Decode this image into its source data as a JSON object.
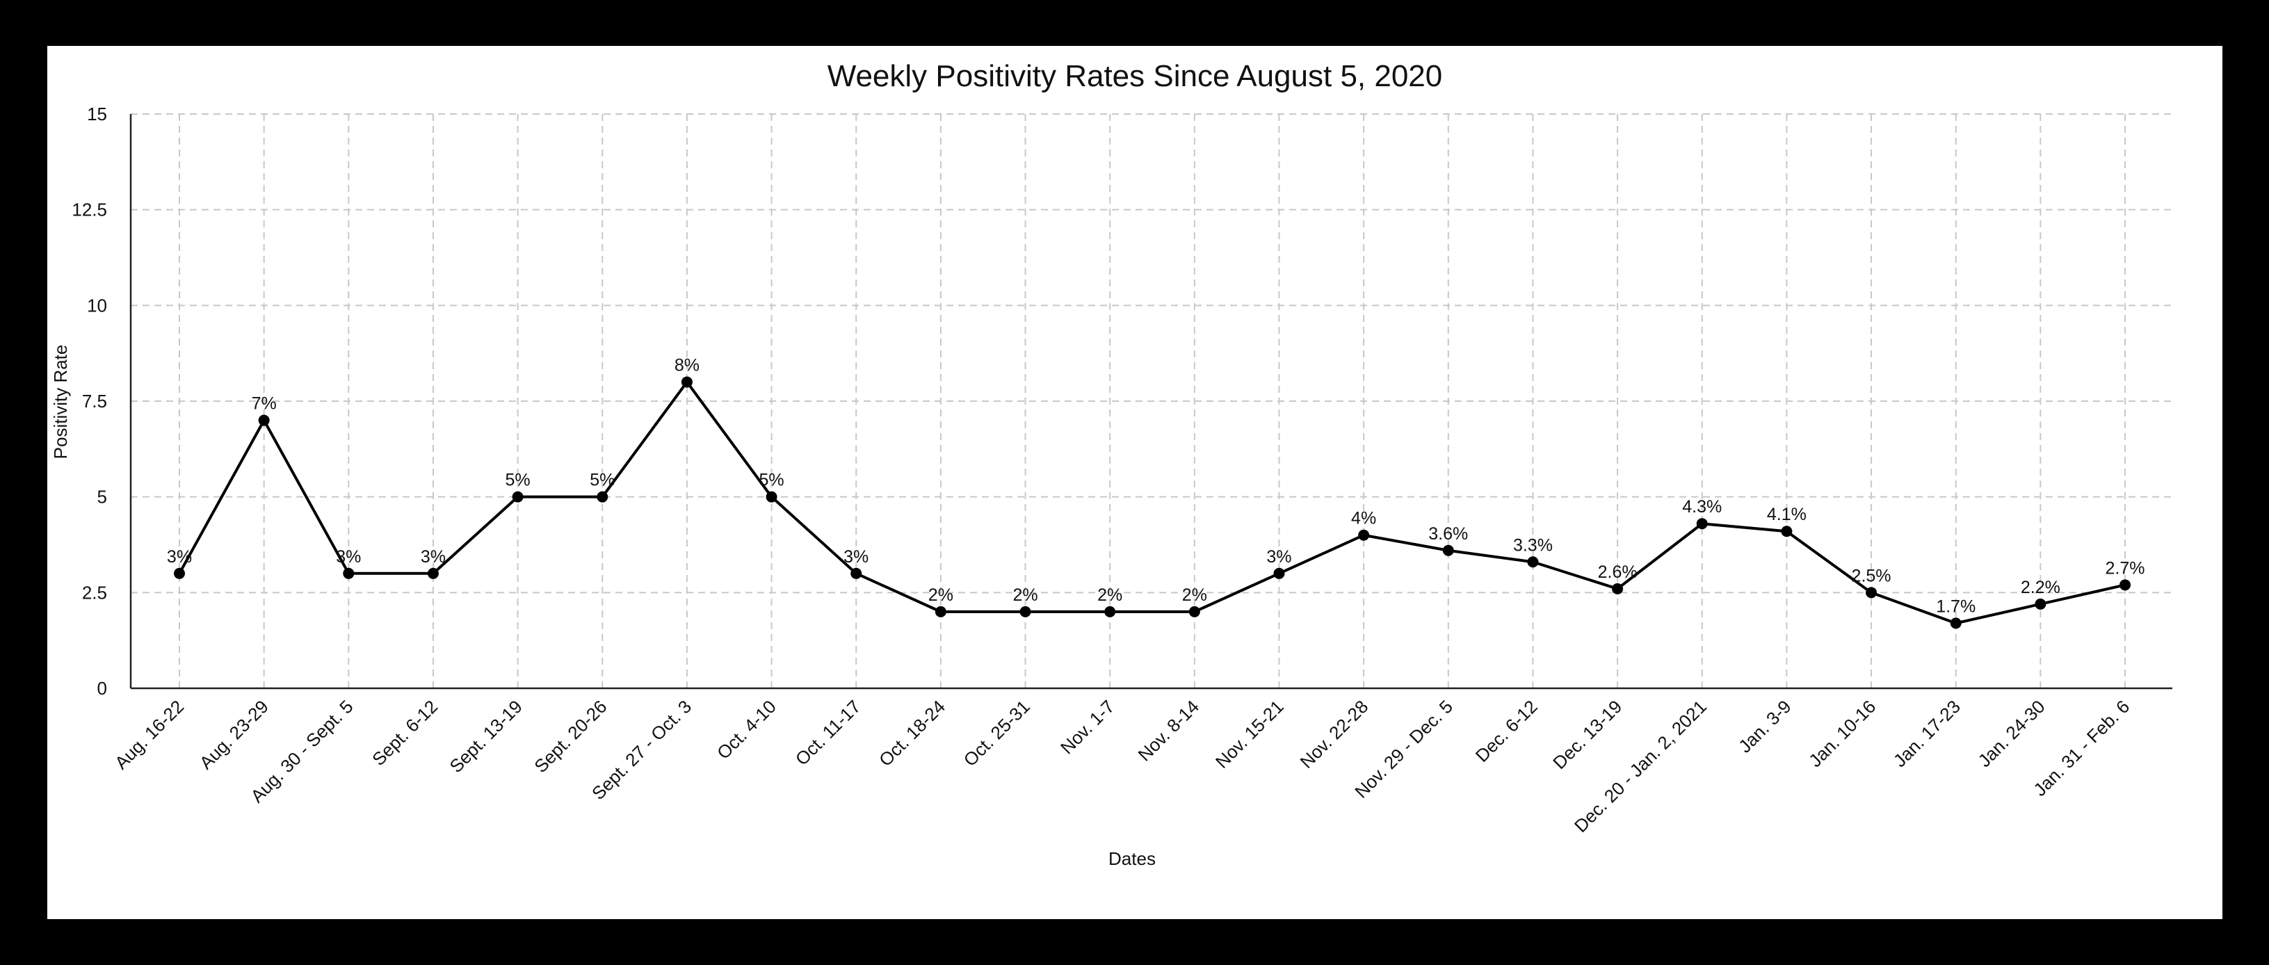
{
  "chart_data": {
    "type": "line",
    "title": "Weekly Positivity Rates Since August 5, 2020",
    "xlabel": "Dates",
    "ylabel": "Positivity Rate",
    "ylim": [
      0,
      15
    ],
    "yticks": [
      "0",
      "2.5",
      "5",
      "7.5",
      "10",
      "12.5",
      "15"
    ],
    "ytick_values": [
      0,
      2.5,
      5,
      7.5,
      10,
      12.5,
      15
    ],
    "grid": true,
    "legend": "none",
    "categories": [
      "Aug. 16-22",
      "Aug. 23-29",
      "Aug. 30 - Sept. 5",
      "Sept. 6-12",
      "Sept. 13-19",
      "Sept. 20-26",
      "Sept. 27 - Oct. 3",
      "Oct. 4-10",
      "Oct. 11-17",
      "Oct. 18-24",
      "Oct. 25-31",
      "Nov. 1-7",
      "Nov. 8-14",
      "Nov. 15-21",
      "Nov. 22-28",
      "Nov. 29 - Dec. 5",
      "Dec. 6-12",
      "Dec. 13-19",
      "Dec. 20 - Jan. 2, 2021",
      "Jan. 3-9",
      "Jan. 10-16",
      "Jan. 17-23",
      "Jan. 24-30",
      "Jan. 31 - Feb. 6"
    ],
    "series": [
      {
        "values": [
          3,
          7,
          3,
          3,
          5,
          5,
          8,
          5,
          3,
          2,
          2,
          2,
          2,
          3,
          4,
          3.6,
          3.3,
          2.6,
          4.3,
          4.1,
          2.5,
          1.7,
          2.2,
          2.7
        ],
        "data_labels": [
          "3%",
          "7%",
          "3%",
          "3%",
          "5%",
          "5%",
          "8%",
          "5%",
          "3%",
          "2%",
          "2%",
          "2%",
          "2%",
          "3%",
          "4%",
          "3.6%",
          "3.3%",
          "2.6%",
          "4.3%",
          "4.1%",
          "2.5%",
          "1.7%",
          "2.2%",
          "2.7%"
        ],
        "color": "#000000"
      }
    ]
  },
  "colors": {
    "frame": "#000000",
    "background": "#ffffff",
    "grid": "#c8c8c8"
  }
}
